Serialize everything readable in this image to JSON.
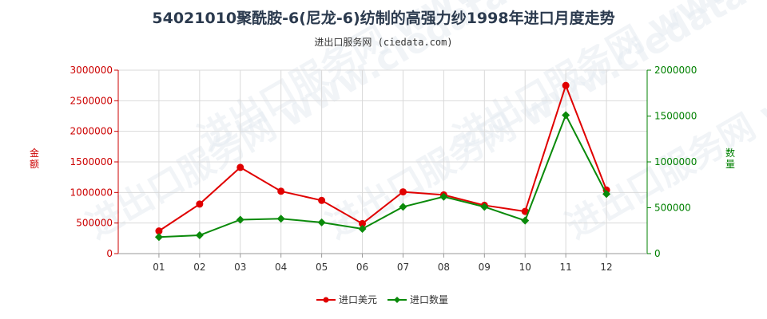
{
  "title": "54021010聚酰胺-6(尼龙-6)纺制的高强力纱1998年进口月度走势",
  "subtitle": "进出口服务网 (ciedata.com)",
  "watermark": "进出口服务网 www.ciedata.com",
  "colors": {
    "import_value": "#e00000",
    "import_quantity": "#0a8a0a",
    "left_axis": "#cc0000",
    "right_axis": "#008000"
  },
  "chart_data": {
    "type": "line",
    "categories": [
      "01",
      "02",
      "03",
      "04",
      "05",
      "06",
      "07",
      "08",
      "09",
      "10",
      "11",
      "12"
    ],
    "left_axis": {
      "label": "金额",
      "range": [
        0,
        3000000
      ],
      "ticks": [
        "0",
        "500000",
        "1000000",
        "1500000",
        "2000000",
        "2500000",
        "3000000"
      ]
    },
    "right_axis": {
      "label": "数量",
      "range": [
        0,
        2000000
      ],
      "ticks": [
        "0",
        "500000",
        "1000000",
        "1500000",
        "2000000"
      ]
    },
    "series": [
      {
        "name": "进口美元",
        "axis": "left",
        "color": "#e00000",
        "marker": "circle",
        "values": [
          370000,
          810000,
          1410000,
          1020000,
          870000,
          490000,
          1010000,
          960000,
          790000,
          690000,
          2750000,
          1040000
        ]
      },
      {
        "name": "进口数量",
        "axis": "right",
        "color": "#0a8a0a",
        "marker": "diamond",
        "values": [
          180000,
          200000,
          370000,
          380000,
          340000,
          270000,
          510000,
          620000,
          510000,
          360000,
          1510000,
          650000
        ]
      }
    ],
    "grid": true,
    "legend_position": "bottom-center"
  }
}
